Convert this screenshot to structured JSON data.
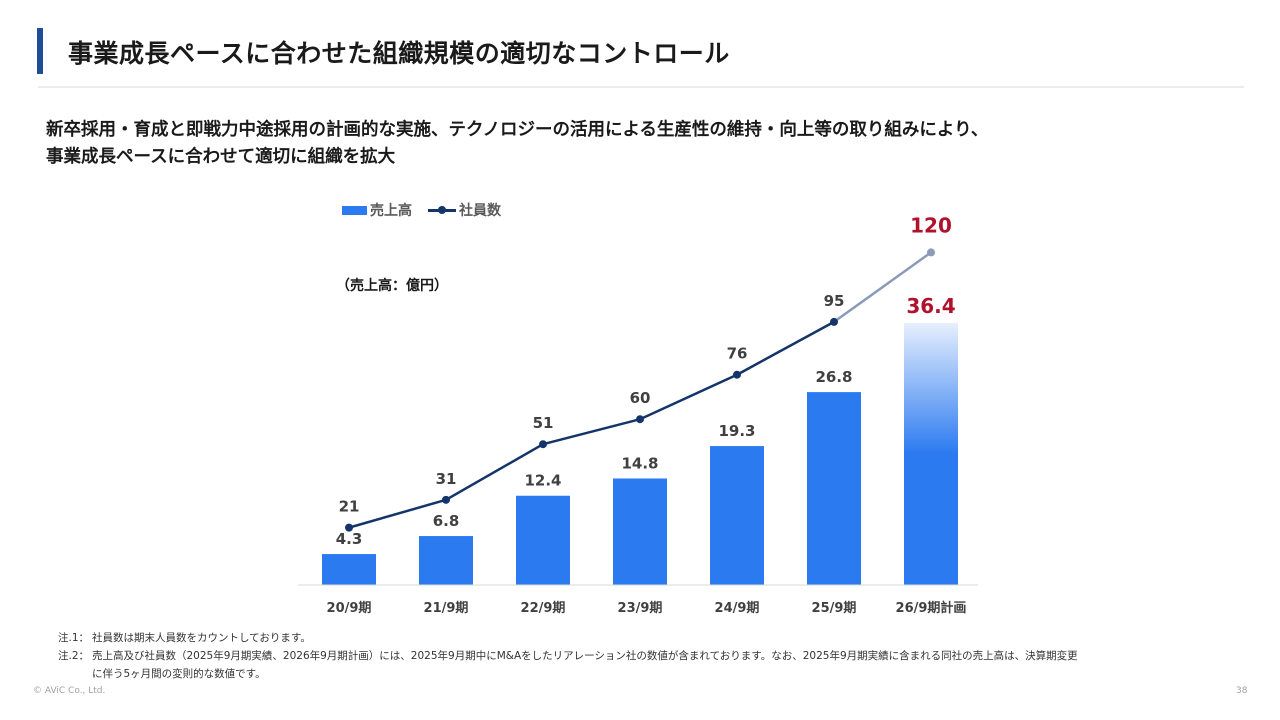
{
  "header": {
    "title": "事業成長ペースに合わせた組織規模の適切なコントロール"
  },
  "lead": {
    "line1": "新卒採用・育成と即戦力中途採用の計画的な実施、テクノロジーの活用による生産性の維持・向上等の取り組みにより、",
    "line2": "事業成長ペースに合わせて適切に組織を拡大"
  },
  "legend": {
    "sales": "売上高",
    "employees": "社員数"
  },
  "unit_label": "（売上高：億円）",
  "colors": {
    "bar": "#2b7af0",
    "line": "#14356b",
    "plan_line": "#8a9bb8",
    "highlight": "#b0122c",
    "label": "#404040",
    "accent_bar": "#1f4e99"
  },
  "chart_data": {
    "type": "bar",
    "title": "",
    "categories": [
      "20/9期",
      "21/9期",
      "22/9期",
      "23/9期",
      "24/9期",
      "25/9期",
      "26/9期計画"
    ],
    "series": [
      {
        "name": "売上高",
        "kind": "bar",
        "unit": "億円",
        "values": [
          4.3,
          6.8,
          12.4,
          14.8,
          19.3,
          26.8,
          36.4
        ]
      },
      {
        "name": "社員数",
        "kind": "line",
        "unit": "人",
        "values": [
          21,
          31,
          51,
          60,
          76,
          95,
          120
        ]
      }
    ],
    "plan_index": 6,
    "xlabel": "",
    "ylabel": "売上高（億円）",
    "ylim_bar": [
      0,
      42
    ],
    "ylim_line": [
      0,
      150
    ],
    "grid": false,
    "legend_position": "top-left"
  },
  "notes": [
    {
      "key": "注.1：",
      "text": "社員数は期末人員数をカウントしております。",
      "cont": ""
    },
    {
      "key": "注.2：",
      "text": "売上高及び社員数（2025年9月期実績、2026年9月期計画）には、2025年9月期中にM&Aをしたリアレーション社の数値が含まれております。なお、2025年9月期実績に含まれる同社の売上高は、決算期変更",
      "cont": "に伴う5ヶ月間の変則的な数値です。"
    }
  ],
  "footer": {
    "copyright": "© AViC Co., Ltd.",
    "page": "38"
  }
}
